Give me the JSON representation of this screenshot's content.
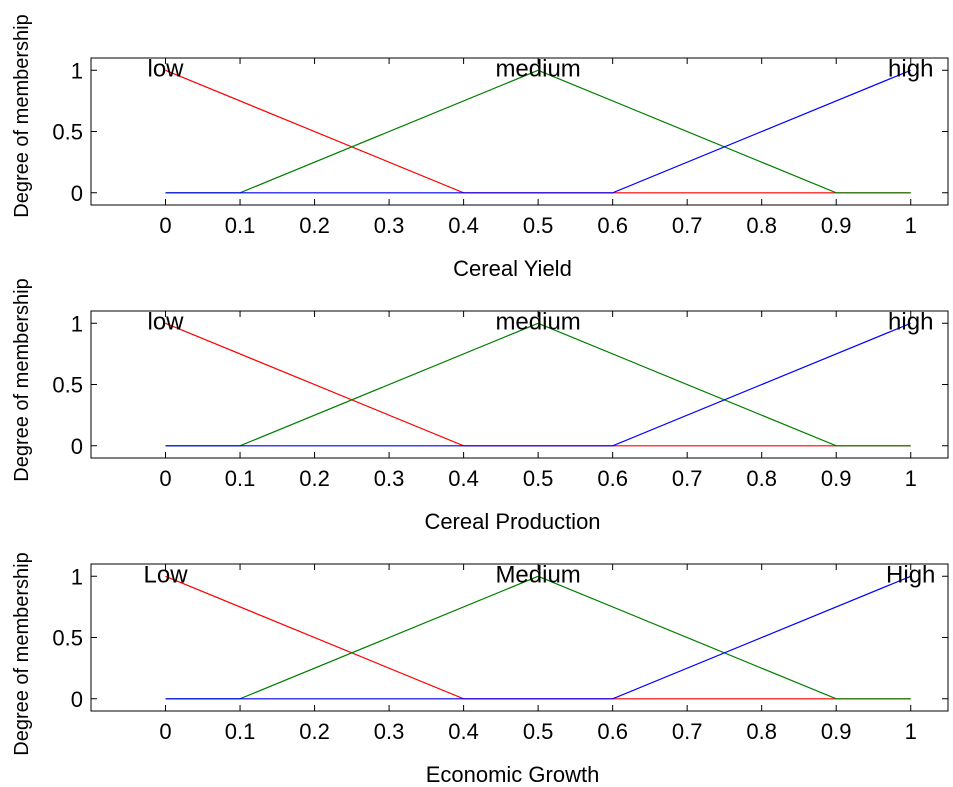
{
  "chart_data": [
    {
      "type": "line",
      "xlabel": "Cereal Yield",
      "ylabel": "Degree of membership",
      "xlim": [
        -0.1,
        1.05
      ],
      "ylim": [
        -0.1,
        1.1
      ],
      "xticks": [
        "0",
        "0.1",
        "0.2",
        "0.3",
        "0.4",
        "0.5",
        "0.6",
        "0.7",
        "0.8",
        "0.9",
        "1"
      ],
      "yticks": [
        "0",
        "0.5",
        "1"
      ],
      "series": [
        {
          "name": "low",
          "color": "#ff0000",
          "x": [
            0,
            0.4,
            1
          ],
          "y": [
            1,
            0,
            0
          ]
        },
        {
          "name": "medium",
          "color": "#008000",
          "x": [
            0,
            0.1,
            0.5,
            0.9,
            1
          ],
          "y": [
            0,
            0,
            1,
            0,
            0
          ]
        },
        {
          "name": "high",
          "color": "#0000ff",
          "x": [
            0,
            0.6,
            1
          ],
          "y": [
            0,
            0,
            1
          ]
        }
      ]
    },
    {
      "type": "line",
      "xlabel": "Cereal Production",
      "ylabel": "Degree of membership",
      "xlim": [
        -0.1,
        1.05
      ],
      "ylim": [
        -0.1,
        1.1
      ],
      "xticks": [
        "0",
        "0.1",
        "0.2",
        "0.3",
        "0.4",
        "0.5",
        "0.6",
        "0.7",
        "0.8",
        "0.9",
        "1"
      ],
      "yticks": [
        "0",
        "0.5",
        "1"
      ],
      "series": [
        {
          "name": "low",
          "color": "#ff0000",
          "x": [
            0,
            0.4,
            1
          ],
          "y": [
            1,
            0,
            0
          ]
        },
        {
          "name": "medium",
          "color": "#008000",
          "x": [
            0,
            0.1,
            0.5,
            0.9,
            1
          ],
          "y": [
            0,
            0,
            1,
            0,
            0
          ]
        },
        {
          "name": "high",
          "color": "#0000ff",
          "x": [
            0,
            0.6,
            1
          ],
          "y": [
            0,
            0,
            1
          ]
        }
      ]
    },
    {
      "type": "line",
      "xlabel": "Economic Growth",
      "ylabel": "Degree of membership",
      "xlim": [
        -0.1,
        1.05
      ],
      "ylim": [
        -0.1,
        1.1
      ],
      "xticks": [
        "0",
        "0.1",
        "0.2",
        "0.3",
        "0.4",
        "0.5",
        "0.6",
        "0.7",
        "0.8",
        "0.9",
        "1"
      ],
      "yticks": [
        "0",
        "0.5",
        "1"
      ],
      "series": [
        {
          "name": "Low",
          "color": "#ff0000",
          "x": [
            0,
            0.4,
            1
          ],
          "y": [
            1,
            0,
            0
          ]
        },
        {
          "name": "Medium",
          "color": "#008000",
          "x": [
            0,
            0.1,
            0.5,
            0.9,
            1
          ],
          "y": [
            0,
            0,
            1,
            0,
            0
          ]
        },
        {
          "name": "High",
          "color": "#0000ff",
          "x": [
            0,
            0.6,
            1
          ],
          "y": [
            0,
            0,
            1
          ]
        }
      ]
    }
  ]
}
